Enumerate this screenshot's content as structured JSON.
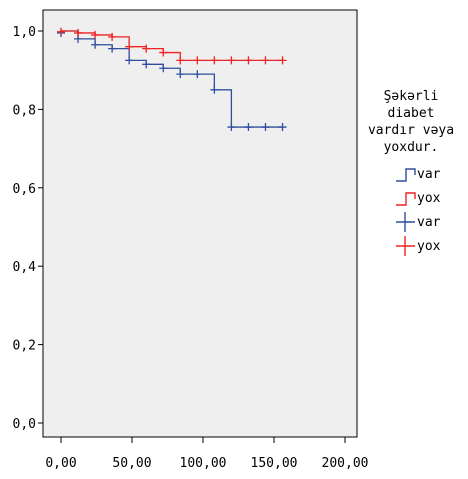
{
  "chart_data": {
    "type": "line",
    "subtype": "kaplan-meier-survival",
    "title": "",
    "xlabel": "",
    "ylabel": "",
    "xlim": [
      0,
      200
    ],
    "ylim": [
      0,
      1
    ],
    "x_ticks": [
      "0,00",
      "50,00",
      "100,00",
      "150,00",
      "200,00"
    ],
    "y_ticks": [
      "0,0",
      "0,2",
      "0,4",
      "0,6",
      "0,8",
      "1,0"
    ],
    "grid": false,
    "background": "#efefef",
    "legend": {
      "placement": "right",
      "title_lines": [
        "Şəkərli",
        "diabet",
        "vardır vəya",
        "yoxdur."
      ],
      "items": [
        {
          "label": "var",
          "kind": "step",
          "color": "#2f4f9e"
        },
        {
          "label": "yox",
          "kind": "step",
          "color": "#ee2222"
        },
        {
          "label": "var",
          "kind": "censor",
          "color": "#2f4f9e"
        },
        {
          "label": "yox",
          "kind": "censor",
          "color": "#ee2222"
        }
      ]
    },
    "series": [
      {
        "name": "var",
        "color": "#2f4f9e",
        "steps": [
          [
            0,
            1.0
          ],
          [
            12,
            0.98
          ],
          [
            24,
            0.965
          ],
          [
            36,
            0.955
          ],
          [
            48,
            0.925
          ],
          [
            60,
            0.915
          ],
          [
            72,
            0.905
          ],
          [
            84,
            0.89
          ],
          [
            108,
            0.85
          ],
          [
            120,
            0.755
          ],
          [
            156,
            0.755
          ]
        ],
        "censored": [
          [
            0,
            0.995
          ],
          [
            12,
            0.98
          ],
          [
            24,
            0.965
          ],
          [
            36,
            0.955
          ],
          [
            48,
            0.925
          ],
          [
            60,
            0.915
          ],
          [
            72,
            0.905
          ],
          [
            84,
            0.89
          ],
          [
            96,
            0.89
          ],
          [
            108,
            0.85
          ],
          [
            120,
            0.755
          ],
          [
            132,
            0.755
          ],
          [
            144,
            0.755
          ],
          [
            156,
            0.755
          ]
        ]
      },
      {
        "name": "yox",
        "color": "#ee2222",
        "steps": [
          [
            0,
            1.0
          ],
          [
            12,
            0.995
          ],
          [
            24,
            0.99
          ],
          [
            36,
            0.985
          ],
          [
            48,
            0.96
          ],
          [
            60,
            0.955
          ],
          [
            72,
            0.945
          ],
          [
            84,
            0.925
          ],
          [
            156,
            0.925
          ]
        ],
        "censored": [
          [
            0,
            0.998
          ],
          [
            12,
            0.995
          ],
          [
            24,
            0.99
          ],
          [
            36,
            0.985
          ],
          [
            48,
            0.96
          ],
          [
            60,
            0.955
          ],
          [
            72,
            0.945
          ],
          [
            84,
            0.925
          ],
          [
            96,
            0.925
          ],
          [
            108,
            0.925
          ],
          [
            120,
            0.925
          ],
          [
            132,
            0.925
          ],
          [
            144,
            0.925
          ],
          [
            156,
            0.925
          ]
        ]
      }
    ]
  }
}
